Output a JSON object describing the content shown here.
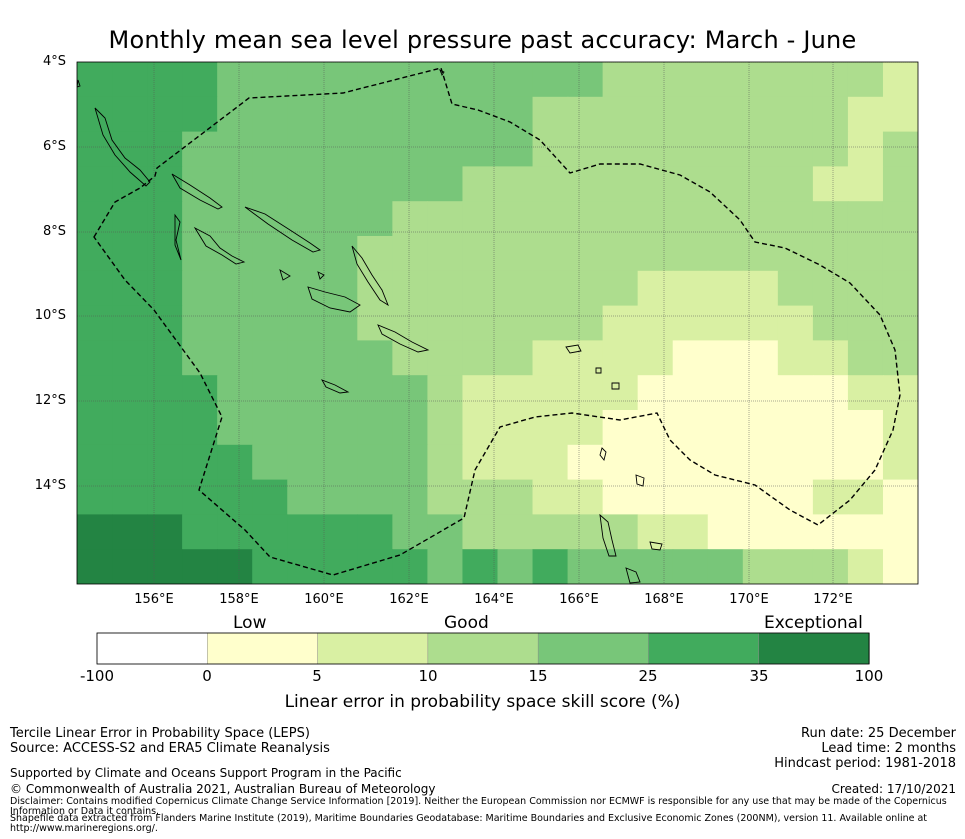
{
  "title": "Monthly mean sea level pressure past accuracy: March - June",
  "map": {
    "lat_labels": [
      "4°S",
      "6°S",
      "8°S",
      "10°S",
      "12°S",
      "14°S"
    ],
    "lon_labels": [
      "156°E",
      "158°E",
      "160°E",
      "162°E",
      "164°E",
      "166°E",
      "168°E",
      "170°E",
      "172°E"
    ],
    "extent": {
      "lon_min": 154.2,
      "lon_max": 174.0,
      "lat_min": -16.2,
      "lat_max": -4.0
    },
    "grid_cell_deg": 0.833,
    "boundary_description": "dashed EEZ outline of the Solomon Islands"
  },
  "colorbar": {
    "categories": [
      "Low",
      "Good",
      "Exceptional"
    ],
    "ticks": [
      "-100",
      "0",
      "5",
      "10",
      "15",
      "25",
      "35",
      "100"
    ],
    "colors": [
      "#ffffff",
      "#ffffcc",
      "#d9f0a3",
      "#addd8e",
      "#78c679",
      "#41ab5d",
      "#238443"
    ],
    "label": "Linear error in probability space skill score (%)"
  },
  "footer": {
    "method": "Tercile Linear Error in Probability Space (LEPS)",
    "source": "Source: ACCESS-S2 and ERA5 Climate Reanalysis",
    "run_date": "Run date: 25 December",
    "lead_time": "Lead time: 2 months",
    "hindcast": "Hindcast period: 1981-2018",
    "supported": "Supported by Climate and Oceans Support Program in the Pacific",
    "copyright": "© Commonwealth of Australia 2021, Australian Bureau of Meteorology",
    "created": "Created: 17/10/2021",
    "disclaimer1": "Disclaimer: Contains modified Copernicus Climate Change Service Information [2019]. Neither the European Commission nor ECMWF is responsible for any use that may be made of the Copernicus",
    "disclaimer2": "Information or Data it contains.",
    "shapefile1": "Shapefile data extracted from Flanders Marine Institute (2019), Maritime Boundaries Geodatabase: Maritime Boundaries and Exclusive Economic Zones (200NM), version 11. Available online at",
    "shapefile2": "http://www.marineregions.org/."
  }
}
